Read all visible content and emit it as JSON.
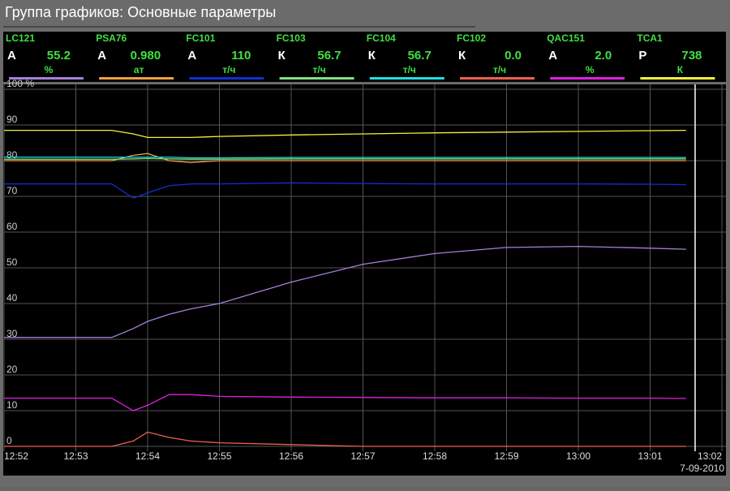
{
  "title": "Группа графиков: Основные параметры",
  "chart_data": {
    "type": "line",
    "date": "7-09-2010",
    "xlim": [
      0,
      10
    ],
    "xticks": [
      {
        "value": 0,
        "label": "12:52"
      },
      {
        "value": 1,
        "label": "12:53"
      },
      {
        "value": 2,
        "label": "12:54"
      },
      {
        "value": 3,
        "label": "12:55"
      },
      {
        "value": 4,
        "label": "12:56"
      },
      {
        "value": 5,
        "label": "12:57"
      },
      {
        "value": 6,
        "label": "12:58"
      },
      {
        "value": 7,
        "label": "12:59"
      },
      {
        "value": 8,
        "label": "13:00"
      },
      {
        "value": 9,
        "label": "13:01"
      },
      {
        "value": 10,
        "label": "13:02"
      }
    ],
    "ylim": [
      0,
      100
    ],
    "yticks": [
      0,
      10,
      20,
      30,
      40,
      50,
      60,
      70,
      80,
      90,
      {
        "value": 100,
        "label": "100 %"
      }
    ],
    "grid": true,
    "x": [
      0,
      1,
      1.5,
      1.8,
      2,
      2.3,
      2.6,
      3,
      4,
      5,
      6,
      7,
      8,
      9,
      9.5
    ],
    "series": [
      {
        "name": "LC121",
        "mode": "A",
        "reading": "55.2",
        "unit": "%",
        "color": "#a680d8",
        "values": [
          30.5,
          30.5,
          30.5,
          33,
          35,
          37,
          38.5,
          40,
          46,
          51,
          54,
          55.7,
          56,
          55.5,
          55.2
        ]
      },
      {
        "name": "PSA76",
        "mode": "A",
        "reading": "0.980",
        "unit": "ат",
        "color": "#f0a040",
        "values": [
          80,
          80,
          80,
          81.5,
          82,
          80,
          79.5,
          80,
          80,
          80,
          80,
          80,
          80,
          80,
          80
        ]
      },
      {
        "name": "FC101",
        "mode": "A",
        "reading": "110",
        "unit": "т/ч",
        "color": "#1030d0",
        "values": [
          73.5,
          73.5,
          73.5,
          69.5,
          71,
          73,
          73.5,
          73.5,
          73.8,
          73.6,
          73.5,
          73.5,
          73.5,
          73.4,
          73.3
        ]
      },
      {
        "name": "FC103",
        "mode": "К",
        "reading": "56.7",
        "unit": "т/ч",
        "color": "#80e080",
        "values": [
          80.4,
          80.4,
          80.4,
          80.5,
          80.6,
          80.5,
          80.4,
          80.4,
          80.5,
          80.5,
          80.5,
          80.5,
          80.5,
          80.5,
          80.5
        ]
      },
      {
        "name": "FC104",
        "mode": "К",
        "reading": "56.7",
        "unit": "т/ч",
        "color": "#20e0e0",
        "values": [
          81,
          81,
          81,
          81,
          81,
          81,
          80.8,
          80.8,
          80.9,
          80.9,
          80.9,
          80.9,
          80.9,
          80.9,
          80.9
        ]
      },
      {
        "name": "FC102",
        "mode": "К",
        "reading": "0.0",
        "unit": "т/ч",
        "color": "#f06050",
        "values": [
          0,
          0,
          0,
          1.5,
          4,
          2.5,
          1.5,
          1,
          0.5,
          0,
          0,
          0,
          0,
          0,
          0
        ]
      },
      {
        "name": "QAC151",
        "mode": "A",
        "reading": "2.0",
        "unit": "%",
        "color": "#e020e0",
        "values": [
          13.5,
          13.5,
          13.5,
          10,
          11.5,
          14.5,
          14.5,
          14,
          13.8,
          13.7,
          13.6,
          13.6,
          13.5,
          13.5,
          13.4
        ]
      },
      {
        "name": "TCA1",
        "mode": "P",
        "reading": "738",
        "unit": "К",
        "color": "#f0f040",
        "values": [
          88.5,
          88.5,
          88.5,
          87.5,
          86.5,
          86.5,
          86.5,
          86.8,
          87.2,
          87.5,
          87.8,
          88,
          88.2,
          88.4,
          88.5
        ]
      }
    ]
  }
}
